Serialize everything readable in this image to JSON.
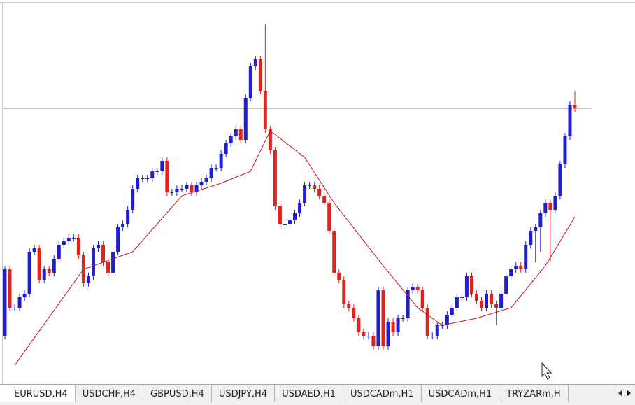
{
  "chart_data": {
    "type": "candlestick",
    "up_color": "#1f1fd1",
    "down_color": "#e0231c",
    "ma_color": "#c8101a",
    "ylim": [
      0,
      110
    ],
    "candles": [
      [
        14,
        34,
        13,
        33
      ],
      [
        33,
        34,
        21,
        22
      ],
      [
        22,
        23,
        21,
        22
      ],
      [
        22,
        26,
        21,
        25
      ],
      [
        25,
        27,
        24,
        26
      ],
      [
        26,
        39,
        25,
        38
      ],
      [
        38,
        40,
        37,
        39
      ],
      [
        39,
        40,
        29,
        30
      ],
      [
        30,
        34,
        29,
        33
      ],
      [
        33,
        34,
        31,
        32
      ],
      [
        32,
        37,
        31,
        36
      ],
      [
        36,
        41,
        35,
        40
      ],
      [
        40,
        42,
        39,
        41
      ],
      [
        41,
        43,
        40,
        42
      ],
      [
        42,
        43,
        41,
        42
      ],
      [
        42,
        43,
        36,
        37
      ],
      [
        37,
        38,
        28,
        29
      ],
      [
        29,
        32,
        28,
        31
      ],
      [
        31,
        40,
        30,
        39
      ],
      [
        39,
        41,
        38,
        40
      ],
      [
        40,
        41,
        34,
        35
      ],
      [
        35,
        36,
        31,
        32
      ],
      [
        32,
        39,
        31,
        38
      ],
      [
        38,
        46,
        37,
        45
      ],
      [
        45,
        47,
        44,
        46
      ],
      [
        46,
        51,
        45,
        50
      ],
      [
        50,
        57,
        49,
        56
      ],
      [
        56,
        60,
        55,
        59
      ],
      [
        59,
        60,
        58,
        59
      ],
      [
        59,
        60,
        58,
        59
      ],
      [
        59,
        62,
        58,
        61
      ],
      [
        61,
        62,
        60,
        61
      ],
      [
        61,
        65,
        60,
        64
      ],
      [
        64,
        65,
        54,
        55
      ],
      [
        55,
        56,
        54,
        55
      ],
      [
        55,
        57,
        54,
        56
      ],
      [
        56,
        57,
        55,
        56
      ],
      [
        56,
        58,
        55,
        57
      ],
      [
        57,
        58,
        54,
        55
      ],
      [
        55,
        58,
        54,
        57
      ],
      [
        57,
        59,
        56,
        58
      ],
      [
        58,
        60,
        57,
        59
      ],
      [
        59,
        63,
        58,
        62
      ],
      [
        62,
        63,
        61,
        62
      ],
      [
        62,
        67,
        61,
        66
      ],
      [
        66,
        70,
        65,
        69
      ],
      [
        69,
        72,
        68,
        71
      ],
      [
        71,
        74,
        70,
        73
      ],
      [
        73,
        74,
        69,
        70
      ],
      [
        70,
        83,
        69,
        82
      ],
      [
        82,
        92,
        81,
        91
      ],
      [
        91,
        94,
        90,
        93
      ],
      [
        93,
        94,
        83,
        84
      ],
      [
        84,
        103,
        72,
        73
      ],
      [
        73,
        74,
        66,
        67
      ],
      [
        67,
        68,
        50,
        51
      ],
      [
        51,
        52,
        45,
        46
      ],
      [
        46,
        47,
        45,
        46
      ],
      [
        46,
        48,
        45,
        47
      ],
      [
        47,
        50,
        46,
        49
      ],
      [
        49,
        53,
        48,
        52
      ],
      [
        52,
        58,
        51,
        57
      ],
      [
        57,
        58,
        56,
        57
      ],
      [
        57,
        58,
        55,
        56
      ],
      [
        56,
        57,
        53,
        54
      ],
      [
        54,
        55,
        51,
        52
      ],
      [
        52,
        53,
        43,
        44
      ],
      [
        44,
        45,
        31,
        32
      ],
      [
        32,
        33,
        29,
        30
      ],
      [
        30,
        31,
        22,
        23
      ],
      [
        23,
        24,
        21,
        22
      ],
      [
        22,
        23,
        18,
        19
      ],
      [
        19,
        20,
        14,
        15
      ],
      [
        15,
        16,
        13,
        14
      ],
      [
        14,
        15,
        13,
        14
      ],
      [
        14,
        15,
        10,
        11
      ],
      [
        11,
        28,
        10,
        27
      ],
      [
        27,
        28,
        10,
        11
      ],
      [
        11,
        19,
        10,
        18
      ],
      [
        18,
        19,
        14,
        15
      ],
      [
        15,
        20,
        14,
        19
      ],
      [
        19,
        20,
        18,
        19
      ],
      [
        19,
        28,
        18,
        27
      ],
      [
        27,
        29,
        26,
        28
      ],
      [
        28,
        29,
        26,
        27
      ],
      [
        27,
        28,
        21,
        22
      ],
      [
        22,
        23,
        13,
        14
      ],
      [
        14,
        15,
        13,
        14
      ],
      [
        14,
        18,
        13,
        17
      ],
      [
        17,
        18,
        16,
        17
      ],
      [
        17,
        21,
        16,
        20
      ],
      [
        20,
        23,
        19,
        22
      ],
      [
        22,
        26,
        21,
        25
      ],
      [
        25,
        26,
        24,
        25
      ],
      [
        25,
        32,
        24,
        31
      ],
      [
        31,
        32,
        25,
        26
      ],
      [
        26,
        27,
        23,
        24
      ],
      [
        24,
        25,
        21,
        22
      ],
      [
        22,
        27,
        21,
        26
      ],
      [
        26,
        27,
        22,
        23
      ],
      [
        23,
        24,
        17,
        22
      ],
      [
        22,
        27,
        21,
        26
      ],
      [
        26,
        32,
        25,
        31
      ],
      [
        31,
        34,
        30,
        33
      ],
      [
        33,
        35,
        32,
        34
      ],
      [
        34,
        35,
        32,
        33
      ],
      [
        33,
        41,
        32,
        40
      ],
      [
        40,
        45,
        39,
        44
      ],
      [
        44,
        46,
        35,
        45
      ],
      [
        45,
        50,
        38,
        49
      ],
      [
        49,
        53,
        48,
        52
      ],
      [
        52,
        53,
        35,
        50
      ],
      [
        50,
        55,
        49,
        54
      ],
      [
        54,
        64,
        53,
        63
      ],
      [
        63,
        72,
        62,
        71
      ],
      [
        71,
        81,
        70,
        80
      ],
      [
        80,
        84,
        78,
        79
      ]
    ],
    "ma": {
      "x": [
        2,
        16,
        26,
        36,
        44,
        50,
        54,
        61,
        67,
        77,
        84,
        89,
        96,
        103,
        110,
        116
      ],
      "values": [
        5.6,
        33,
        38,
        54,
        57.6,
        61,
        72.6,
        65,
        52,
        34,
        22,
        17,
        19,
        22,
        34,
        48
      ]
    }
  },
  "tabs": [
    "EURUSD,H4",
    "USDCHF,H4",
    "GBPUSD,H4",
    "USDJPY,H4",
    "USDAED,H1",
    "USDCADm,H1",
    "USDCADm,H1",
    "TRYZARm,H"
  ]
}
